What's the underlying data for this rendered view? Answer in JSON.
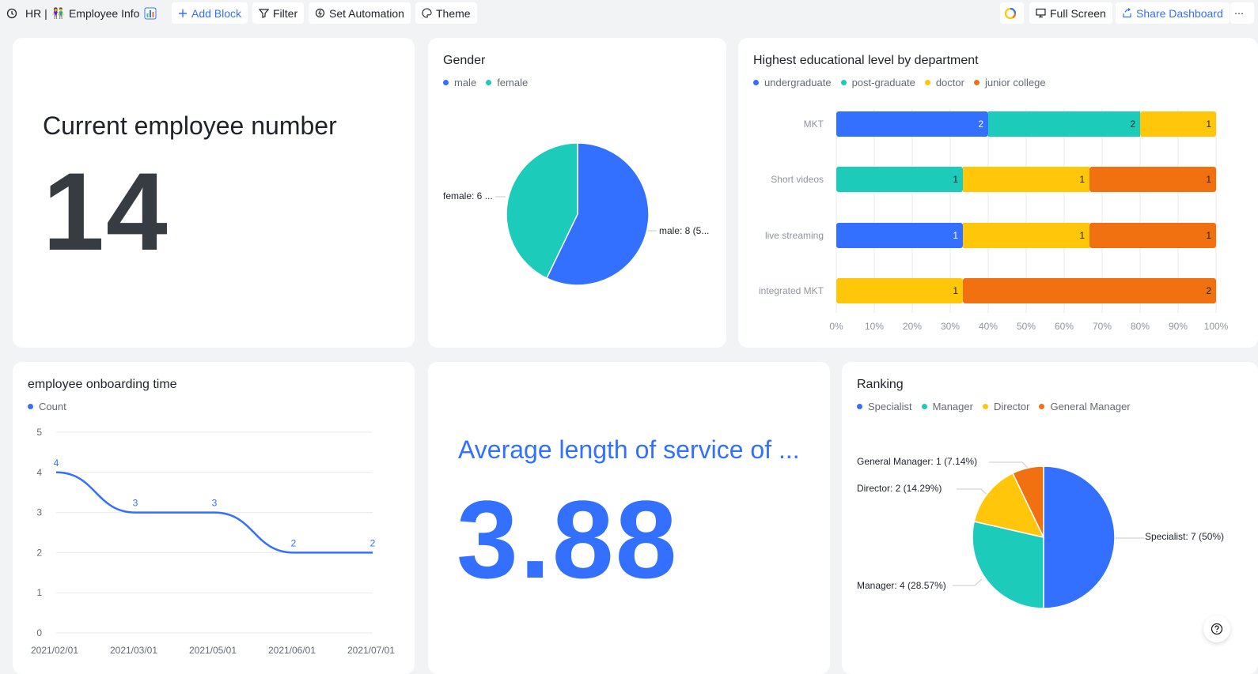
{
  "toolbar": {
    "breadcrumb_base": "HR |",
    "dashboard_name": "Employee Info",
    "add_block": "Add Block",
    "filter": "Filter",
    "set_automation": "Set Automation",
    "theme": "Theme",
    "full_screen": "Full Screen",
    "share_dashboard": "Share Dashboard"
  },
  "employee_number": {
    "title": "Current employee number",
    "value": "14"
  },
  "gender": {
    "title": "Gender",
    "legend": [
      "male",
      "female"
    ],
    "label_male": "male: 8 (5...",
    "label_female": "female: 6 ..."
  },
  "education": {
    "title": "Highest educational level by department",
    "legend": [
      "undergraduate",
      "post-graduate",
      "doctor",
      "junior college"
    ]
  },
  "onboarding": {
    "title": "employee onboarding time",
    "legend": [
      "Count"
    ]
  },
  "service": {
    "title": "Average length of service of ...",
    "value": "3.88"
  },
  "ranking": {
    "title": "Ranking",
    "legend": [
      "Specialist",
      "Manager",
      "Director",
      "General Manager"
    ],
    "labels": {
      "general_manager": "General Manager: 1 (7.14%)",
      "director": "Director: 2 (14.29%)",
      "specialist": "Specialist: 7 (50%)",
      "manager": "Manager: 4 (28.57%)"
    }
  },
  "colors": {
    "blue": "#3370ff",
    "teal": "#1ccbb9",
    "yellow": "#ffc60a",
    "orange": "#f1700f",
    "dark": "#373c43"
  },
  "chart_data": [
    {
      "type": "pie",
      "title": "Gender",
      "labels": [
        "male",
        "female"
      ],
      "values": [
        8,
        6
      ]
    },
    {
      "type": "bar",
      "orientation": "horizontal",
      "stacked": "percent",
      "title": "Highest educational level by department",
      "categories": [
        "MKT",
        "Short videos",
        "live streaming",
        "integrated MKT"
      ],
      "series": [
        {
          "name": "undergraduate",
          "values": [
            2,
            0,
            1,
            0
          ]
        },
        {
          "name": "post-graduate",
          "values": [
            2,
            1,
            0,
            0
          ]
        },
        {
          "name": "doctor",
          "values": [
            1,
            1,
            1,
            1
          ]
        },
        {
          "name": "junior college",
          "values": [
            0,
            1,
            1,
            2
          ]
        }
      ],
      "xlim": [
        0,
        100
      ],
      "xticks": [
        "0%",
        "10%",
        "20%",
        "30%",
        "40%",
        "50%",
        "60%",
        "70%",
        "80%",
        "90%",
        "100%"
      ]
    },
    {
      "type": "line",
      "title": "employee onboarding time",
      "x": [
        "2021/02/01",
        "2021/03/01",
        "2021/05/01",
        "2021/06/01",
        "2021/07/01"
      ],
      "series": [
        {
          "name": "Count",
          "values": [
            4,
            3,
            3,
            2,
            2
          ]
        }
      ],
      "ylim": [
        0,
        5
      ],
      "yticks": [
        0,
        1,
        2,
        3,
        4,
        5
      ]
    },
    {
      "type": "pie",
      "title": "Ranking",
      "labels": [
        "Specialist",
        "Manager",
        "Director",
        "General Manager"
      ],
      "values": [
        7,
        4,
        2,
        1
      ]
    }
  ]
}
